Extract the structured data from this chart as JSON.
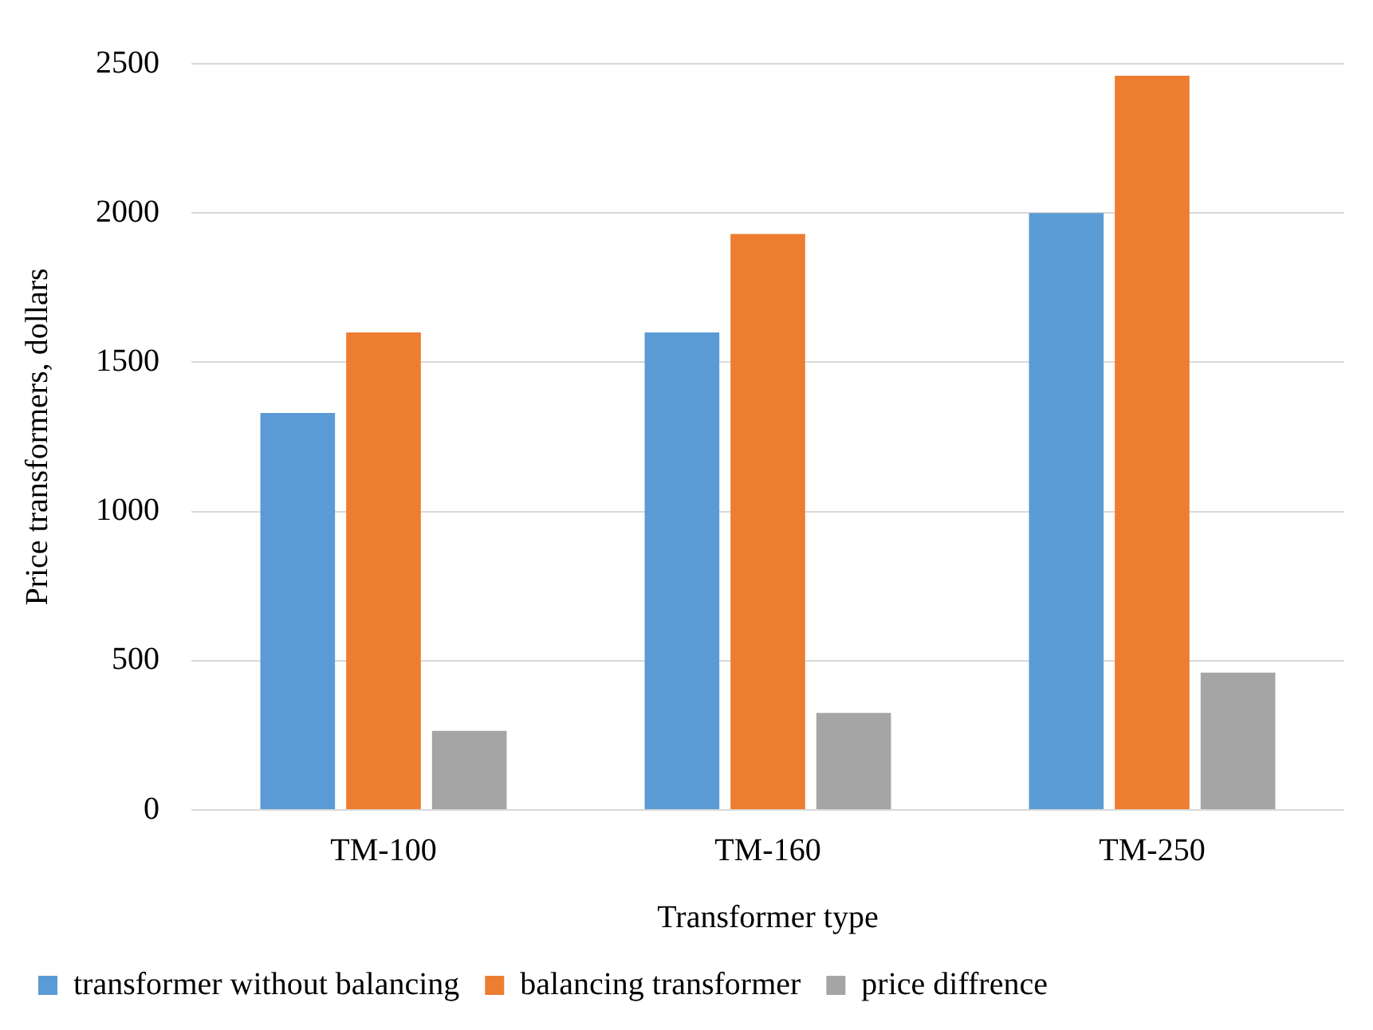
{
  "chart_data": {
    "type": "bar",
    "xlabel": "Transformer type",
    "ylabel": "Price transformers, dollars",
    "categories": [
      "TM-100",
      "TM-160",
      "TM-250"
    ],
    "series": [
      {
        "name": "transformer without balancing",
        "color": "#5b9bd5",
        "values": [
          1330,
          1600,
          2000
        ]
      },
      {
        "name": "balancing transformer",
        "color": "#ed7d31",
        "values": [
          1600,
          1930,
          2460
        ]
      },
      {
        "name": "price diffrence",
        "color": "#a5a5a5",
        "values": [
          265,
          325,
          460
        ]
      }
    ],
    "ylim": [
      0,
      2500
    ],
    "yticks": [
      0,
      500,
      1000,
      1500,
      2000,
      2500
    ],
    "grid": "y",
    "legend": "bottom"
  }
}
